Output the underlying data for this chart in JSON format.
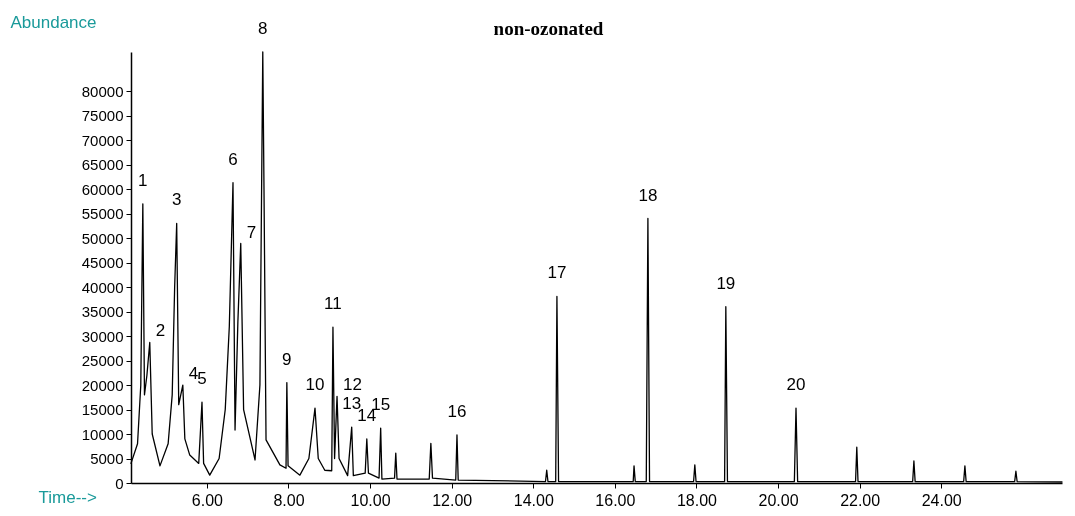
{
  "chart_data": {
    "type": "line",
    "title": "non-ozonated",
    "xlabel": "Time-->",
    "ylabel": "Abundance",
    "x": [
      4.14,
      4.3,
      4.38,
      4.43,
      4.47,
      4.53,
      4.6,
      4.66,
      4.85,
      5.05,
      5.15,
      5.21,
      5.26,
      5.31,
      5.41,
      5.46,
      5.58,
      5.8,
      5.88,
      5.92,
      6.07,
      6.3,
      6.45,
      6.55,
      6.64,
      6.69,
      6.76,
      6.83,
      6.9,
      7.18,
      7.3,
      7.37,
      7.4,
      7.45,
      7.79,
      7.94,
      7.96,
      7.99,
      8.28,
      8.5,
      8.65,
      8.73,
      8.89,
      9.06,
      9.09,
      9.13,
      9.19,
      9.24,
      9.45,
      9.55,
      9.59,
      9.88,
      9.92,
      9.96,
      10.22,
      10.26,
      10.29,
      10.6,
      10.63,
      10.66,
      11.45,
      11.49,
      11.53,
      12.1,
      12.13,
      12.16,
      14.3,
      14.33,
      14.36,
      14.55,
      14.58,
      14.62,
      16.45,
      16.47,
      16.5,
      16.77,
      16.81,
      16.85,
      17.93,
      17.96,
      17.99,
      18.69,
      18.72,
      18.76,
      20.4,
      20.44,
      20.48,
      21.9,
      21.93,
      21.96,
      23.3,
      23.33,
      23.36,
      24.55,
      24.58,
      24.61,
      25.8,
      25.83,
      25.86,
      26.96
    ],
    "series": [
      {
        "color": "#000000",
        "values": [
          4000,
          8000,
          20000,
          57000,
          18000,
          22000,
          28700,
          10000,
          3500,
          8000,
          18000,
          40000,
          53000,
          16000,
          20000,
          9000,
          5700,
          4000,
          16500,
          4000,
          1600,
          5000,
          15000,
          32000,
          61300,
          10800,
          33000,
          48900,
          15000,
          4700,
          20000,
          88000,
          60000,
          8800,
          3700,
          3000,
          20500,
          3500,
          1600,
          5000,
          15300,
          5000,
          2600,
          2500,
          31800,
          5000,
          17700,
          5000,
          1500,
          11400,
          1500,
          2000,
          9000,
          2000,
          1000,
          11200,
          800,
          1000,
          6100,
          800,
          800,
          8100,
          1000,
          600,
          9800,
          600,
          300,
          2600,
          300,
          300,
          38100,
          300,
          300,
          3500,
          300,
          300,
          54000,
          300,
          300,
          3700,
          300,
          300,
          36000,
          300,
          300,
          15300,
          300,
          300,
          7300,
          300,
          300,
          4500,
          300,
          300,
          3500,
          300,
          300,
          2400,
          300,
          200
        ]
      }
    ],
    "xlim": [
      4.14,
      26.96
    ],
    "ylim": [
      0,
      88000
    ],
    "xticks": [
      {
        "value": 6,
        "label": "6.00"
      },
      {
        "value": 8,
        "label": "8.00"
      },
      {
        "value": 10,
        "label": "10.00"
      },
      {
        "value": 12,
        "label": "12.00"
      },
      {
        "value": 14,
        "label": "14.00"
      },
      {
        "value": 16,
        "label": "16.00"
      },
      {
        "value": 18,
        "label": "18.00"
      },
      {
        "value": 20,
        "label": "20.00"
      },
      {
        "value": 22,
        "label": "22.00"
      },
      {
        "value": 24,
        "label": "24.00"
      }
    ],
    "yticks": [
      0,
      5000,
      10000,
      15000,
      20000,
      25000,
      30000,
      35000,
      40000,
      45000,
      50000,
      55000,
      60000,
      65000,
      70000,
      75000,
      80000
    ],
    "grid": false,
    "annotations": [
      {
        "text": "1",
        "x": 4.43,
        "y": 57000
      },
      {
        "text": "2",
        "x": 4.6,
        "y": 28700
      },
      {
        "text": "3",
        "x": 5.26,
        "y": 53000
      },
      {
        "text": "4",
        "x": 5.41,
        "y": 20000
      },
      {
        "text": "5",
        "x": 5.88,
        "y": 16500
      },
      {
        "text": "6",
        "x": 6.64,
        "y": 61300
      },
      {
        "text": "7",
        "x": 6.83,
        "y": 48900
      },
      {
        "text": "8",
        "x": 7.37,
        "y": 88000
      },
      {
        "text": "9",
        "x": 7.96,
        "y": 20500
      },
      {
        "text": "10",
        "x": 8.65,
        "y": 15300
      },
      {
        "text": "11",
        "x": 9.09,
        "y": 31800
      },
      {
        "text": "12",
        "x": 9.19,
        "y": 17700
      },
      {
        "text": "13",
        "x": 9.55,
        "y": 11400
      },
      {
        "text": "14",
        "x": 9.92,
        "y": 9000
      },
      {
        "text": "15",
        "x": 10.26,
        "y": 11200
      },
      {
        "text": "16",
        "x": 12.13,
        "y": 9800
      },
      {
        "text": "17",
        "x": 14.58,
        "y": 38100
      },
      {
        "text": "18",
        "x": 16.81,
        "y": 54000
      },
      {
        "text": "19",
        "x": 18.72,
        "y": 36000
      },
      {
        "text": "20",
        "x": 20.44,
        "y": 15300
      }
    ]
  }
}
